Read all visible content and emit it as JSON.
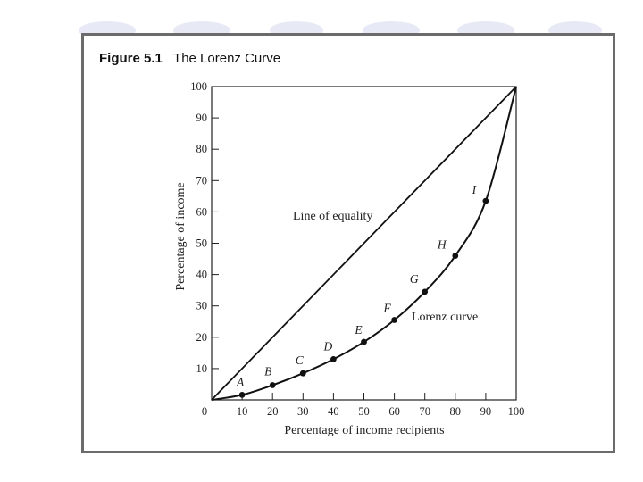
{
  "figure": {
    "number": "Figure 5.1",
    "title": "The Lorenz Curve"
  },
  "chart_data": {
    "type": "line",
    "title": "The Lorenz Curve",
    "xlabel": "Percentage of income recipients",
    "ylabel": "Percentage of income",
    "xlim": [
      0,
      100
    ],
    "ylim": [
      0,
      100
    ],
    "xticks": [
      "0",
      "10",
      "20",
      "30",
      "40",
      "50",
      "60",
      "70",
      "80",
      "90",
      "100"
    ],
    "yticks": [
      "10",
      "20",
      "30",
      "40",
      "50",
      "60",
      "70",
      "80",
      "90",
      "100"
    ],
    "grid": false,
    "series": [
      {
        "name": "Line of equality",
        "x": [
          0,
          100
        ],
        "y": [
          0,
          100
        ]
      },
      {
        "name": "Lorenz curve",
        "x": [
          0,
          10,
          20,
          30,
          40,
          50,
          60,
          70,
          80,
          90,
          100
        ],
        "y": [
          0,
          1.6,
          4.7,
          8.5,
          13,
          18.5,
          25.5,
          34.5,
          46,
          63.5,
          100
        ]
      }
    ],
    "points": [
      {
        "label": "A",
        "x": 10,
        "y": 1.6
      },
      {
        "label": "B",
        "x": 20,
        "y": 4.7
      },
      {
        "label": "C",
        "x": 30,
        "y": 8.5
      },
      {
        "label": "D",
        "x": 40,
        "y": 13
      },
      {
        "label": "E",
        "x": 50,
        "y": 18.5
      },
      {
        "label": "F",
        "x": 60,
        "y": 25.5
      },
      {
        "label": "G",
        "x": 70,
        "y": 34.5
      },
      {
        "label": "H",
        "x": 80,
        "y": 46
      },
      {
        "label": "I",
        "x": 90,
        "y": 63.5
      }
    ],
    "annotations": [
      "Line of equality",
      "Lorenz curve"
    ]
  }
}
